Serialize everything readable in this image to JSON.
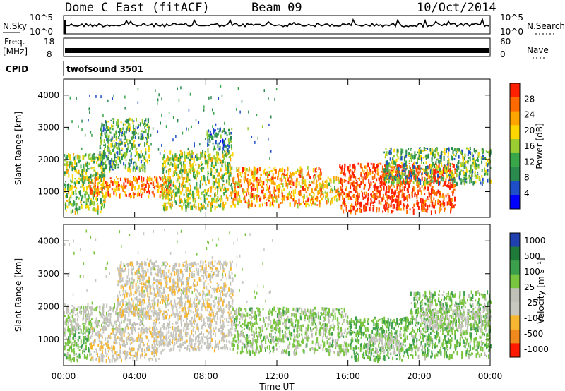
{
  "header": {
    "station": "Dome C East (fitACF)",
    "beam": "Beam 09",
    "date": "10/Oct/2014"
  },
  "top_panels": {
    "nsky_label": "N.Sky",
    "nsky_scale": [
      "10^5",
      "10^0"
    ],
    "nsearch_label": "N.Search",
    "nsearch_scale": [
      "10^5",
      "10^0"
    ],
    "freq_label": "Freq.",
    "freq_unit": "[MHz]",
    "freq_scale": [
      "18",
      "8"
    ],
    "nave_label": "Nave",
    "nave_scale": [
      "60",
      "0"
    ],
    "cpid_label": "CPID",
    "cpid_value": "twofsound 3501"
  },
  "colors": {
    "power": [
      "#0000ff",
      "#1f4fc8",
      "#2b8a4e",
      "#3aa64a",
      "#9acd32",
      "#ffd700",
      "#ffa500",
      "#ff6a00",
      "#ff2000"
    ],
    "velocity": [
      "#2040b0",
      "#1f7a3a",
      "#3c9f4c",
      "#79c540",
      "#c0c0b8",
      "#c8c8c0",
      "#f7b733",
      "#f08a1c",
      "#ff1a00"
    ]
  },
  "chart_data": [
    {
      "type": "heatmap",
      "title": "Power",
      "xlabel": "",
      "ylabel": "Slant Range [km]",
      "x_range_hours": [
        0,
        24
      ],
      "ylim": [
        200,
        4500
      ],
      "yticks": [
        "1000",
        "2000",
        "3000",
        "4000"
      ],
      "colorbar": {
        "label": "Power [dB]",
        "ticks": [
          "4",
          "8",
          "12",
          "16",
          "20",
          "24",
          "28"
        ],
        "range": [
          0,
          30
        ]
      },
      "regions": [
        {
          "t0": 0.0,
          "t1": 2.3,
          "r0": 400,
          "r1": 2200,
          "value": 14
        },
        {
          "t0": 1.4,
          "t1": 6.0,
          "r0": 900,
          "r1": 1500,
          "value": 24
        },
        {
          "t0": 2.0,
          "t1": 4.8,
          "r0": 1700,
          "r1": 3300,
          "value": 12
        },
        {
          "t0": 5.5,
          "t1": 9.5,
          "r0": 500,
          "r1": 2300,
          "value": 16
        },
        {
          "t0": 8.0,
          "t1": 9.5,
          "r0": 2300,
          "r1": 3000,
          "value": 10
        },
        {
          "t0": 9.5,
          "t1": 14.5,
          "r0": 600,
          "r1": 1800,
          "value": 22
        },
        {
          "t0": 14.5,
          "t1": 15.5,
          "r0": 700,
          "r1": 1500,
          "value": 18
        },
        {
          "t0": 15.5,
          "t1": 22.0,
          "r0": 400,
          "r1": 1900,
          "value": 28
        },
        {
          "t0": 18.0,
          "t1": 24.0,
          "r0": 1300,
          "r1": 2400,
          "value": 12
        }
      ]
    },
    {
      "type": "heatmap",
      "title": "Velocity",
      "xlabel": "Time UT",
      "ylabel": "Slant Range [km]",
      "x_range_hours": [
        0,
        24
      ],
      "xticks": [
        "00:00",
        "04:00",
        "08:00",
        "12:00",
        "16:00",
        "20:00",
        "00:00"
      ],
      "ylim": [
        200,
        4500
      ],
      "yticks": [
        "1000",
        "2000",
        "3000",
        "4000"
      ],
      "colorbar": {
        "label": "Velocity [m s⁻¹]",
        "ticks": [
          "1000",
          "500",
          "100",
          "25",
          "-25",
          "-100",
          "-500",
          "-1000"
        ],
        "range": [
          -1200,
          1200
        ]
      },
      "regions": [
        {
          "t0": 0.0,
          "t1": 1.5,
          "r0": 400,
          "r1": 1400,
          "value": 300
        },
        {
          "t0": 0.0,
          "t1": 4.5,
          "r0": 1300,
          "r1": 2100,
          "value": 0
        },
        {
          "t0": 1.5,
          "t1": 5.5,
          "r0": 400,
          "r1": 1400,
          "value": -300
        },
        {
          "t0": 3.0,
          "t1": 9.5,
          "r0": 1700,
          "r1": 3400,
          "value": -300
        },
        {
          "t0": 5.0,
          "t1": 9.5,
          "r0": 700,
          "r1": 1700,
          "value": -200
        },
        {
          "t0": 9.5,
          "t1": 16.0,
          "r0": 600,
          "r1": 2000,
          "value": 200
        },
        {
          "t0": 16.0,
          "t1": 19.5,
          "r0": 400,
          "r1": 1700,
          "value": 400
        },
        {
          "t0": 17.0,
          "t1": 19.0,
          "r0": 600,
          "r1": 1200,
          "value": -120
        },
        {
          "t0": 19.5,
          "t1": 24.0,
          "r0": 500,
          "r1": 2500,
          "value": 300
        },
        {
          "t0": 20.0,
          "t1": 24.0,
          "r0": 1400,
          "r1": 2000,
          "value": 0
        }
      ]
    }
  ]
}
